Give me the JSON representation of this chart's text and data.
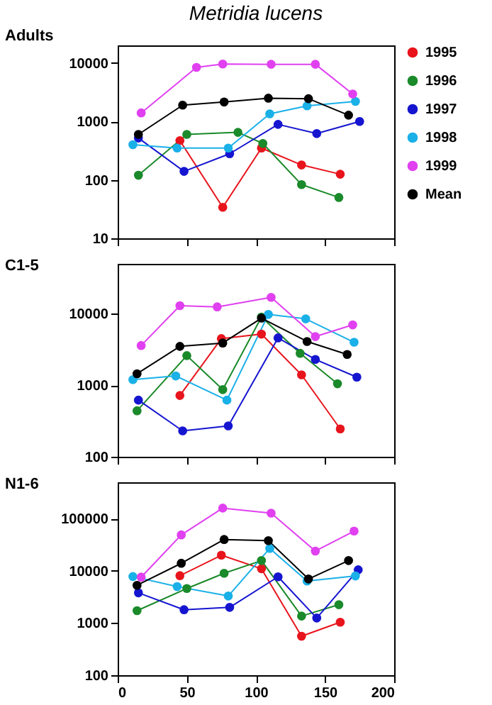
{
  "chart_data": [
    {
      "type": "line",
      "title": "Metridia lucens",
      "ylabel": "Adults",
      "log": "y",
      "marker": "circle",
      "line_style": "solid",
      "legend": "right",
      "tick_labels": "y",
      "xlim": [
        0,
        200
      ],
      "xticks": [
        0,
        50,
        100,
        150,
        200
      ],
      "ylim": [
        10,
        20000
      ],
      "yticks": [
        10,
        100,
        1000,
        10000
      ],
      "series": [
        {
          "name": "1995",
          "color": "#e8141c",
          "x": [
            45,
            76,
            104,
            133,
            161
          ],
          "values": [
            470,
            34,
            350,
            180,
            125
          ]
        },
        {
          "name": "1996",
          "color": "#1a8a2a",
          "x": [
            15,
            50,
            87,
            105,
            133,
            160
          ],
          "values": [
            120,
            600,
            650,
            420,
            83,
            50
          ]
        },
        {
          "name": "1997",
          "color": "#1515d0",
          "x": [
            15,
            48,
            81,
            116,
            144,
            175
          ],
          "values": [
            520,
            140,
            280,
            890,
            620,
            1000
          ]
        },
        {
          "name": "1998",
          "color": "#1ab0e8",
          "x": [
            11,
            43,
            80,
            110,
            137,
            172
          ],
          "values": [
            400,
            350,
            350,
            1350,
            1850,
            2200
          ]
        },
        {
          "name": "1999",
          "color": "#e040f0",
          "x": [
            17,
            57,
            76,
            111,
            143,
            170
          ],
          "values": [
            1400,
            8400,
            9600,
            9500,
            9500,
            2950
          ]
        },
        {
          "name": "Mean",
          "color": "#000000",
          "x": [
            15,
            47,
            77,
            109,
            138,
            167
          ],
          "values": [
            600,
            1900,
            2150,
            2500,
            2450,
            1280
          ]
        }
      ]
    },
    {
      "type": "line",
      "ylabel": "C1-5",
      "log": "y",
      "marker": "circle",
      "line_style": "solid",
      "tick_labels": "y",
      "xlim": [
        0,
        200
      ],
      "xticks": [
        0,
        50,
        100,
        150,
        200
      ],
      "ylim": [
        100,
        50000
      ],
      "yticks": [
        100,
        1000,
        10000
      ],
      "series": [
        {
          "color": "#e8141c",
          "x": [
            45,
            75,
            104,
            133,
            161
          ],
          "values": [
            720,
            4500,
            5200,
            1400,
            245
          ]
        },
        {
          "color": "#1a8a2a",
          "x": [
            14,
            50,
            76,
            104,
            132,
            159
          ],
          "values": [
            440,
            2600,
            870,
            9000,
            2800,
            1050
          ]
        },
        {
          "color": "#1515d0",
          "x": [
            15,
            47,
            80,
            116,
            143,
            173
          ],
          "values": [
            620,
            230,
            270,
            4600,
            2300,
            1300
          ]
        },
        {
          "color": "#1ab0e8",
          "x": [
            11,
            42,
            79,
            109,
            136,
            171
          ],
          "values": [
            1200,
            1350,
            620,
            9800,
            8500,
            4000
          ]
        },
        {
          "color": "#e040f0",
          "x": [
            17,
            45,
            72,
            111,
            143,
            170
          ],
          "values": [
            3600,
            13000,
            12500,
            17000,
            4800,
            7000
          ]
        },
        {
          "color": "#000000",
          "x": [
            14,
            45,
            76,
            104,
            137,
            166
          ],
          "values": [
            1450,
            3500,
            3900,
            8700,
            4100,
            2700
          ]
        }
      ]
    },
    {
      "type": "line",
      "ylabel": "N1-6",
      "log": "y",
      "marker": "circle",
      "line_style": "solid",
      "xlim": [
        0,
        200
      ],
      "xticks": [
        0,
        50,
        100,
        150,
        200
      ],
      "ylim": [
        100,
        500000
      ],
      "yticks": [
        100,
        1000,
        10000,
        100000
      ],
      "series": [
        {
          "color": "#e8141c",
          "x": [
            45,
            75,
            104,
            133,
            161
          ],
          "values": [
            8100,
            20000,
            11000,
            560,
            1040
          ]
        },
        {
          "color": "#1a8a2a",
          "x": [
            14,
            50,
            77,
            104,
            133,
            160
          ],
          "values": [
            1730,
            4600,
            9000,
            15800,
            1360,
            2250
          ]
        },
        {
          "color": "#1515d0",
          "x": [
            15,
            48,
            81,
            116,
            144,
            174
          ],
          "values": [
            3800,
            1800,
            2000,
            7700,
            1250,
            10500
          ]
        },
        {
          "color": "#1ab0e8",
          "x": [
            11,
            43,
            80,
            110,
            137,
            172
          ],
          "values": [
            7800,
            5000,
            3300,
            27000,
            6400,
            8000
          ]
        },
        {
          "color": "#e040f0",
          "x": [
            17,
            46,
            76,
            111,
            143,
            171
          ],
          "values": [
            7600,
            49000,
            160000,
            128000,
            24000,
            58000
          ]
        },
        {
          "color": "#000000",
          "x": [
            14,
            46,
            77,
            109,
            138,
            167
          ],
          "values": [
            5300,
            14000,
            40000,
            38000,
            7000,
            15800
          ]
        }
      ]
    }
  ]
}
